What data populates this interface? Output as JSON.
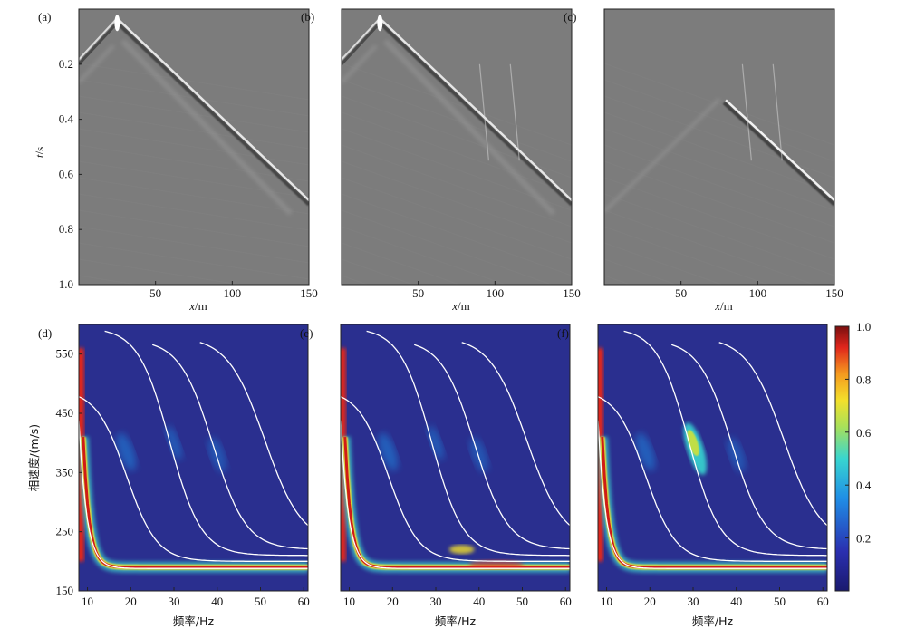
{
  "seismic_panels": [
    {
      "label": "(a)",
      "xlabel_var": "x",
      "xlabel_unit": "/m",
      "xticks": [
        "50",
        "100",
        "150"
      ]
    },
    {
      "label": "(b)",
      "xlabel_var": "x",
      "xlabel_unit": "/m",
      "xticks": [
        "50",
        "100",
        "150"
      ]
    },
    {
      "label": "(c)",
      "xlabel_var": "x",
      "xlabel_unit": "/m",
      "xticks": [
        "50",
        "100",
        "150"
      ]
    }
  ],
  "seismic_ylabel_var": "t",
  "seismic_ylabel_unit": "/s",
  "seismic_yticks": [
    "0.2",
    "0.4",
    "0.6",
    "0.8",
    "1.0"
  ],
  "dispersion_panels": [
    {
      "label": "(d)",
      "xlabel": "频率/Hz",
      "xticks": [
        "10",
        "20",
        "30",
        "40",
        "50",
        "60"
      ]
    },
    {
      "label": "(e)",
      "xlabel": "频率/Hz",
      "xticks": [
        "10",
        "20",
        "30",
        "40",
        "50",
        "60"
      ]
    },
    {
      "label": "(f)",
      "xlabel": "频率/Hz",
      "xticks": [
        "10",
        "20",
        "30",
        "40",
        "50",
        "60"
      ]
    }
  ],
  "dispersion_ylabel": "相速度/(m/s)",
  "dispersion_yticks": [
    "150",
    "250",
    "350",
    "450",
    "550"
  ],
  "colorbar_ticks": [
    "0.2",
    "0.4",
    "0.6",
    "0.8",
    "1.0"
  ],
  "colors": {
    "seismic_bg": "#7c7c7c",
    "disp_bg": "#2a2f8f",
    "curve": "#ffffff"
  },
  "chart_data": [
    {
      "type": "heatmap",
      "kind": "seismic record",
      "x_range": [
        0,
        150
      ],
      "y_range": [
        0,
        1.0
      ],
      "y_inverted": true,
      "events": [
        {
          "apex_x": 25,
          "apex_t": 0.05,
          "right_end": [
            150,
            0.71
          ],
          "left_end": [
            0,
            0.2
          ]
        }
      ]
    },
    {
      "type": "heatmap",
      "kind": "seismic record",
      "x_range": [
        0,
        150
      ],
      "y_range": [
        0,
        1.0
      ],
      "y_inverted": true,
      "events": [
        {
          "apex_x": 25,
          "apex_t": 0.05,
          "right_end": [
            150,
            0.71
          ],
          "left_end": [
            0,
            0.2
          ]
        }
      ]
    },
    {
      "type": "heatmap",
      "kind": "seismic record",
      "x_range": [
        0,
        150
      ],
      "y_range": [
        0,
        1.0
      ],
      "y_inverted": true,
      "events": [
        {
          "start": [
            78,
            0.34
          ],
          "right_end": [
            150,
            0.71
          ]
        }
      ]
    },
    {
      "type": "heatmap",
      "kind": "dispersion image",
      "x_range": [
        8,
        61
      ],
      "y_range": [
        150,
        600
      ],
      "colorbar_range": [
        0,
        1.0
      ]
    },
    {
      "type": "heatmap",
      "kind": "dispersion image",
      "x_range": [
        8,
        61
      ],
      "y_range": [
        150,
        600
      ],
      "colorbar_range": [
        0,
        1.0
      ]
    },
    {
      "type": "heatmap",
      "kind": "dispersion image",
      "x_range": [
        8,
        61
      ],
      "y_range": [
        150,
        600
      ],
      "colorbar_range": [
        0,
        1.0
      ]
    }
  ]
}
